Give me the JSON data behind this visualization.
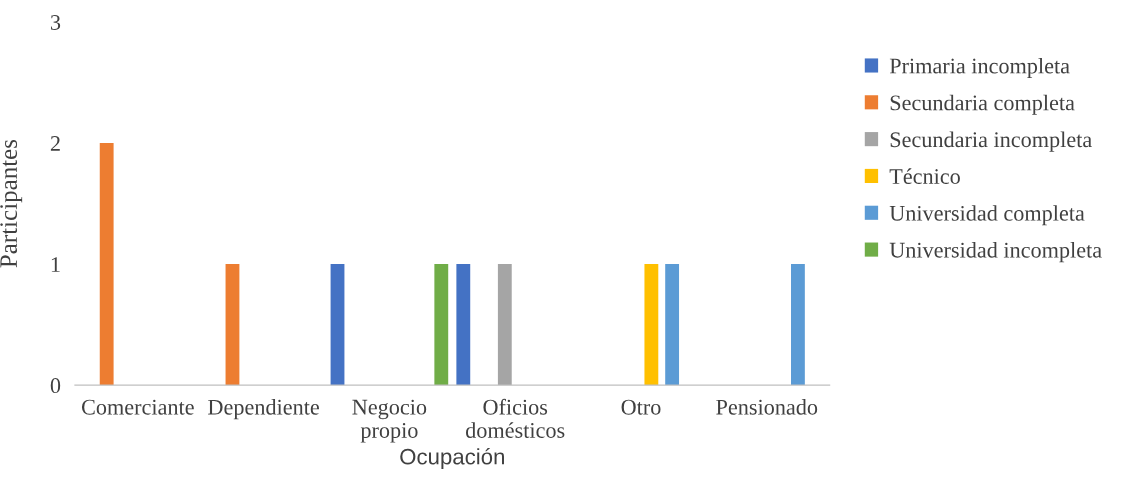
{
  "chart_data": {
    "type": "bar",
    "xlabel": "Ocupación",
    "ylabel": "Participantes",
    "categories": [
      "Comerciante",
      "Dependiente",
      "Negocio\npropio",
      "Oficios\ndomésticos",
      "Otro",
      "Pensionado"
    ],
    "series": [
      {
        "name": "Primaria incompleta",
        "color": "#4472c4",
        "values": [
          0,
          0,
          1,
          1,
          0,
          0
        ]
      },
      {
        "name": "Secundaria completa",
        "color": "#ed7d31",
        "values": [
          2,
          1,
          0,
          0,
          0,
          0
        ]
      },
      {
        "name": "Secundaria incompleta",
        "color": "#a5a5a5",
        "values": [
          0,
          0,
          0,
          1,
          0,
          0
        ]
      },
      {
        "name": "Técnico",
        "color": "#ffc000",
        "values": [
          0,
          0,
          0,
          0,
          1,
          0
        ]
      },
      {
        "name": "Universidad completa",
        "color": "#5b9bd5",
        "values": [
          0,
          0,
          0,
          0,
          1,
          1
        ]
      },
      {
        "name": "Universidad incompleta",
        "color": "#70ad47",
        "values": [
          0,
          0,
          1,
          0,
          0,
          0
        ]
      }
    ],
    "ylim": [
      0,
      3
    ],
    "yticks": [
      0,
      1,
      2,
      3
    ],
    "grid": false,
    "legend": "right"
  }
}
